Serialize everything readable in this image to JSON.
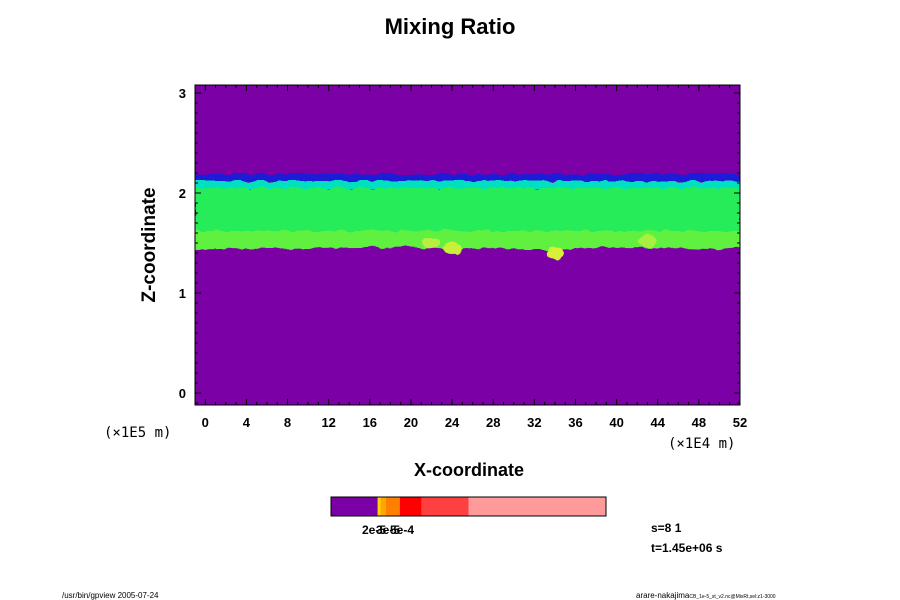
{
  "chart_data": {
    "type": "heatmap",
    "title": "Mixing Ratio",
    "xlabel": "X-coordinate",
    "ylabel": "Z-coordinate",
    "x_scale_label": "(×1E4 m)",
    "y_scale_label": "(×1E5 m)",
    "xlim": [
      -1,
      52
    ],
    "ylim": [
      -0.12,
      3.08
    ],
    "xticks": [
      "0",
      "4",
      "8",
      "12",
      "16",
      "20",
      "24",
      "28",
      "32",
      "36",
      "40",
      "44",
      "48",
      "52"
    ],
    "yticks": [
      "0",
      "1",
      "2",
      "3"
    ],
    "background_value_color": "#7b00a6",
    "band": {
      "bottom_edge": [
        {
          "x": -1,
          "z": 1.43
        },
        {
          "x": 4,
          "z": 1.44
        },
        {
          "x": 10,
          "z": 1.45
        },
        {
          "x": 20,
          "z": 1.46
        },
        {
          "x": 24,
          "z": 1.38
        },
        {
          "x": 26,
          "z": 1.45
        },
        {
          "x": 31,
          "z": 1.4
        },
        {
          "x": 33,
          "z": 1.34
        },
        {
          "x": 35,
          "z": 1.36
        },
        {
          "x": 37,
          "z": 1.46
        },
        {
          "x": 44,
          "z": 1.45
        },
        {
          "x": 49,
          "z": 1.38
        },
        {
          "x": 52,
          "z": 1.46
        }
      ],
      "top_edge_z": 2.17,
      "layers": [
        {
          "z_from": 2.12,
          "z_to": 2.19,
          "color": "#1a1ad8"
        },
        {
          "z_from": 2.05,
          "z_to": 2.12,
          "color": "#00e0c0"
        },
        {
          "z_from": 1.55,
          "z_to": 2.05,
          "color": "#28ec5a"
        },
        {
          "z_from": 1.43,
          "z_to": 1.62,
          "color": "#60f040"
        }
      ],
      "patches": [
        {
          "x": 22,
          "z": 1.5,
          "color": "#b8f040"
        },
        {
          "x": 24,
          "z": 1.45,
          "color": "#c8f038"
        },
        {
          "x": 34,
          "z": 1.4,
          "color": "#d8f038"
        },
        {
          "x": 43,
          "z": 1.52,
          "color": "#a8f040"
        }
      ]
    },
    "colorbar": {
      "segments": [
        {
          "color": "#7b00a6",
          "width": 0.17
        },
        {
          "color": "#ffd700",
          "width": 0.01
        },
        {
          "color": "#ffa500",
          "width": 0.02
        },
        {
          "color": "#ff7f00",
          "width": 0.05
        },
        {
          "color": "#ff0000",
          "width": 0.08
        },
        {
          "color": "#ff4040",
          "width": 0.17
        },
        {
          "color": "#ff9a9a",
          "width": 0.5
        }
      ],
      "labels": [
        "2e-5",
        "3e-5",
        "5e-4"
      ]
    },
    "info": {
      "s": "s=8 1",
      "t": "t=1.45e+06 s"
    }
  },
  "footer": {
    "left": "/usr/bin/gpview 2005-07-24",
    "right_main": "arare-nakajima",
    "right_sub": "CB_1e-5_st_v2.nc@MixRt,sel:z1-3000"
  }
}
